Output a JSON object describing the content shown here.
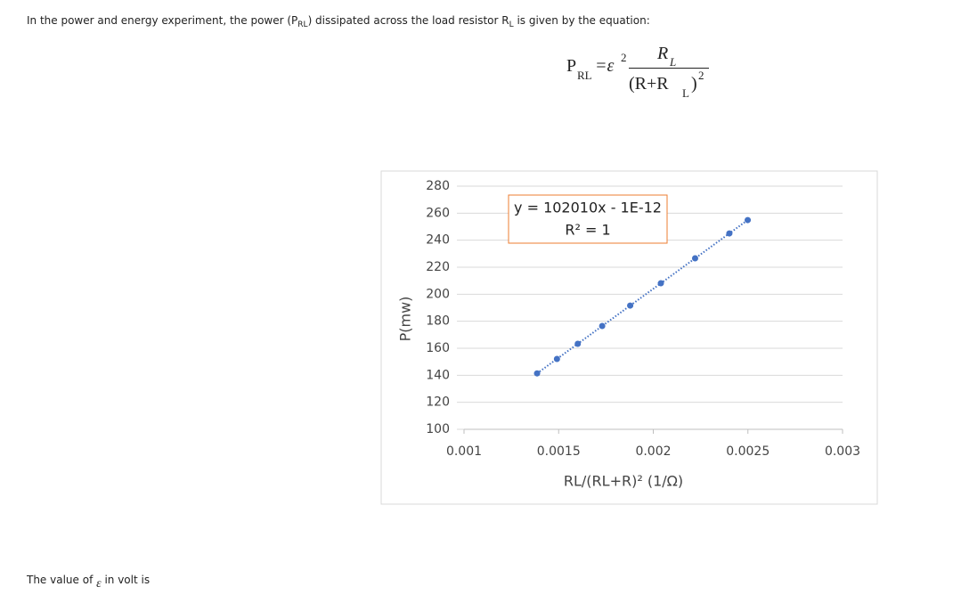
{
  "intro": {
    "before": "In the power and energy experiment, the power (P",
    "sub1": "RL",
    "middle": ") dissipated across the load resistor R",
    "sub2": "L",
    "after": " is given by the equation:"
  },
  "equation": {
    "p": "P",
    "p_sub": "RL",
    "eq": "=ε",
    "eps_exp": "2",
    "num": "R",
    "num_sub": "L",
    "den_open": "(R+R",
    "den_sub": "L",
    "den_close": ")",
    "den_exp": "2"
  },
  "chart_data": {
    "type": "scatter",
    "x": [
      0.001386,
      0.001491,
      0.001601,
      0.00173,
      0.001878,
      0.00204,
      0.002221,
      0.002402,
      0.002499
    ],
    "series": [
      {
        "color": "#4472c4",
        "values": [
          141.4,
          152.1,
          163.3,
          176.5,
          191.6,
          208.1,
          226.6,
          245.0,
          254.9
        ]
      }
    ],
    "xlim": [
      0.001,
      0.003
    ],
    "xticks": [
      0.001,
      0.0015,
      0.002,
      0.0025,
      0.003
    ],
    "ylim": [
      100,
      280
    ],
    "yticks": [
      100,
      120,
      140,
      160,
      180,
      200,
      220,
      240,
      260,
      280
    ],
    "grid": true,
    "xlabel": "RL/(RL+R)² (1/Ω)",
    "ylabel": "P(mw)",
    "trendline": {
      "label": "y = 102010x - 1E-12",
      "r2_label": "R² = 1",
      "slope": 102010,
      "intercept": -1e-12,
      "color": "#4472c4",
      "box_color": "#ed7d31"
    }
  },
  "question": {
    "before": "The value of ",
    "symbol": "ε",
    "after": " in volt is"
  }
}
